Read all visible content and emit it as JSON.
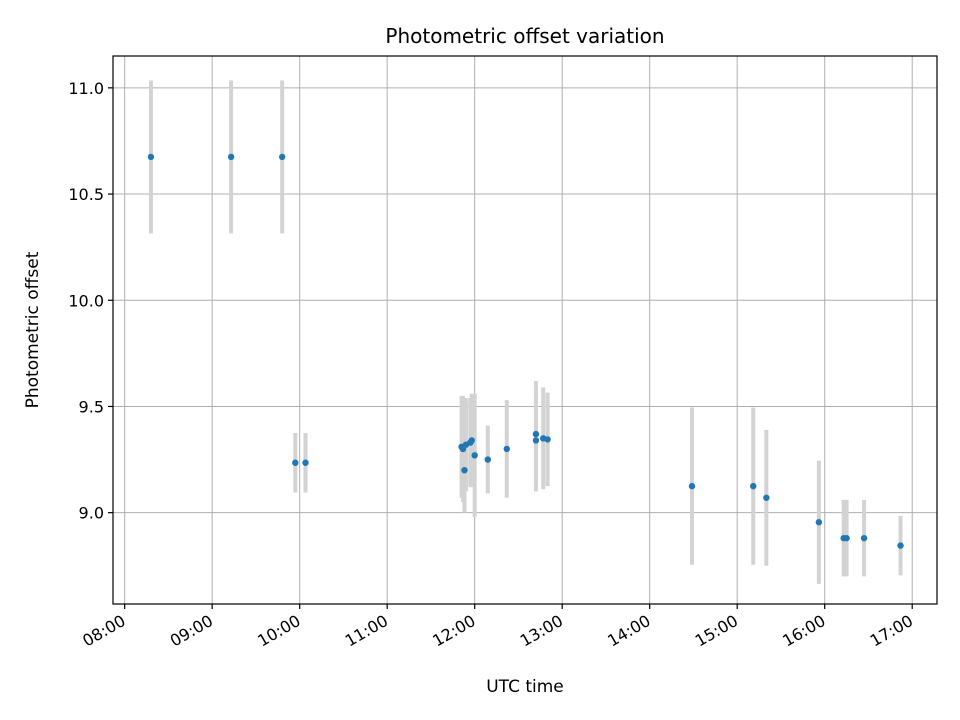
{
  "chart_data": {
    "type": "scatter",
    "title": "Photometric offset variation",
    "xlabel": "UTC time",
    "ylabel": "Photometric offset",
    "grid": true,
    "x_axis": {
      "type": "time",
      "range": [
        "07:52",
        "17:17"
      ],
      "ticks": [
        "08:00",
        "09:00",
        "10:00",
        "11:00",
        "12:00",
        "13:00",
        "14:00",
        "15:00",
        "16:00",
        "17:00"
      ]
    },
    "y_axis": {
      "range": [
        8.57,
        11.15
      ],
      "ticks": [
        9.0,
        9.5,
        10.0,
        10.5,
        11.0
      ],
      "tick_labels": [
        "9.0",
        "9.5",
        "10.0",
        "10.5",
        "11.0"
      ]
    },
    "colors": {
      "point": "#1f77b4",
      "errorbar": "#d3d3d3",
      "grid": "#b0b0b0"
    },
    "points": [
      {
        "x": "08:18",
        "y": 10.675,
        "err": 0.36
      },
      {
        "x": "09:13",
        "y": 10.675,
        "err": 0.36
      },
      {
        "x": "09:48",
        "y": 10.675,
        "err": 0.36
      },
      {
        "x": "09:57",
        "y": 9.235,
        "err": 0.14
      },
      {
        "x": "10:04",
        "y": 9.235,
        "err": 0.14
      },
      {
        "x": "11:51",
        "y": 9.31,
        "err": 0.24
      },
      {
        "x": "11:52",
        "y": 9.3,
        "err": 0.25
      },
      {
        "x": "11:53",
        "y": 9.2,
        "err": 0.2
      },
      {
        "x": "11:54",
        "y": 9.32,
        "err": 0.22
      },
      {
        "x": "11:57",
        "y": 9.33,
        "err": 0.21
      },
      {
        "x": "11:58",
        "y": 9.34,
        "err": 0.22
      },
      {
        "x": "12:00",
        "y": 9.27,
        "err": 0.29
      },
      {
        "x": "12:09",
        "y": 9.25,
        "err": 0.16
      },
      {
        "x": "12:22",
        "y": 9.3,
        "err": 0.23
      },
      {
        "x": "12:42",
        "y": 9.37,
        "err": 0.25
      },
      {
        "x": "12:42",
        "y": 9.34,
        "err": 0.24
      },
      {
        "x": "12:47",
        "y": 9.35,
        "err": 0.24
      },
      {
        "x": "12:50",
        "y": 9.345,
        "err": 0.22
      },
      {
        "x": "14:29",
        "y": 9.125,
        "err": 0.37
      },
      {
        "x": "15:11",
        "y": 9.125,
        "err": 0.37
      },
      {
        "x": "15:20",
        "y": 9.07,
        "err": 0.32
      },
      {
        "x": "15:56",
        "y": 8.955,
        "err": 0.29
      },
      {
        "x": "16:13",
        "y": 8.88,
        "err": 0.18
      },
      {
        "x": "16:15",
        "y": 8.88,
        "err": 0.18
      },
      {
        "x": "16:27",
        "y": 8.88,
        "err": 0.18
      },
      {
        "x": "16:52",
        "y": 8.845,
        "err": 0.14
      }
    ]
  }
}
